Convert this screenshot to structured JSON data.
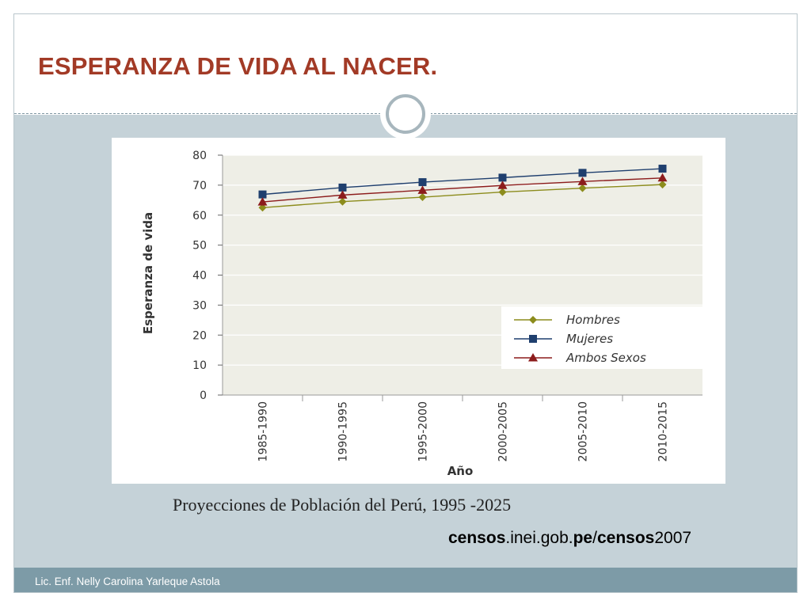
{
  "slide": {
    "title": "ESPERANZA DE VIDA AL NACER.",
    "caption": "Proyecciones de Población del Perú, 1995 -2025",
    "source_parts": [
      "censos",
      ".inei.gob.",
      "pe",
      "/",
      "censos",
      "2007"
    ],
    "footer": "Lic. Enf. Nelly Carolina Yarleque Astola"
  },
  "colors": {
    "title": "#a23a26",
    "hombres": "#8c8c1c",
    "mujeres": "#1f3f6e",
    "ambos": "#8c1c1c",
    "plot_bg": "#eeeee6",
    "footer": "#7d9ba7",
    "body": "#c5d2d8"
  },
  "chart_data": {
    "type": "line",
    "xlabel": "Año",
    "ylabel": "Esperanza de vida",
    "ylim": [
      0,
      80
    ],
    "yticks": [
      0,
      10,
      20,
      30,
      40,
      50,
      60,
      70,
      80
    ],
    "grid": true,
    "legend_position": "bottom-right",
    "categories": [
      "1985-1990",
      "1990-1995",
      "1995-2000",
      "2000-2005",
      "2005-2010",
      "2010-2015"
    ],
    "series": [
      {
        "name": "Hombres",
        "marker": "diamond",
        "values": [
          62.5,
          64.5,
          66,
          67.7,
          69,
          70.2
        ]
      },
      {
        "name": "Mujeres",
        "marker": "square",
        "values": [
          66.9,
          69.2,
          71,
          72.5,
          74.1,
          75.5
        ]
      },
      {
        "name": "Ambos Sexos",
        "marker": "triangle",
        "values": [
          64.4,
          66.7,
          68.3,
          69.9,
          71.2,
          72.4
        ]
      }
    ]
  }
}
